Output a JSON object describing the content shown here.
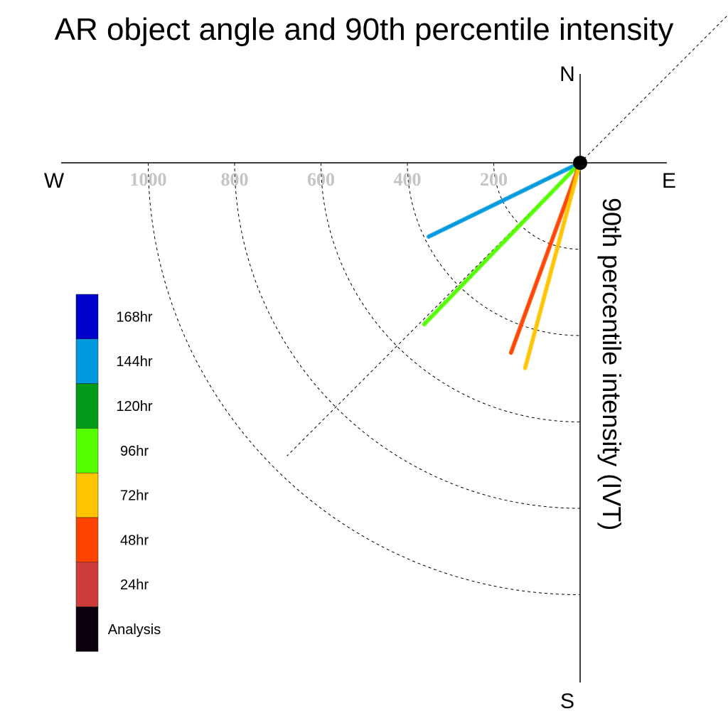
{
  "chart_data": {
    "type": "polar-vector",
    "title": "AR object angle and 90th percentile intensity",
    "radial_label": "90th percentile intensity (IVT)",
    "compass": {
      "n": "N",
      "e": "E",
      "s": "S",
      "w": "W"
    },
    "rings": [
      200,
      400,
      600,
      800,
      1000
    ],
    "ring_labels": [
      "200",
      "400",
      "600",
      "800",
      "1000"
    ],
    "rmax": 1200,
    "origin": {
      "x": 0,
      "y": 0
    },
    "diagonal_ref_deg": [
      45,
      225
    ],
    "series": [
      {
        "name": "144hr",
        "color": "#0099dd",
        "angle_deg": 244,
        "intensity": 390
      },
      {
        "name": "96hr",
        "color": "#55ff00",
        "angle_deg": 224,
        "intensity": 520
      },
      {
        "name": "48hr",
        "color": "#ff4400",
        "angle_deg": 200,
        "intensity": 468
      },
      {
        "name": "72hr",
        "color": "#ffc400",
        "angle_deg": 195,
        "intensity": 492
      }
    ],
    "legend": [
      {
        "label": "168hr",
        "color": "#0000cc"
      },
      {
        "label": "144hr",
        "color": "#0099dd"
      },
      {
        "label": "120hr",
        "color": "#009918"
      },
      {
        "label": "96hr",
        "color": "#55ff00"
      },
      {
        "label": "72hr",
        "color": "#ffc400"
      },
      {
        "label": "48hr",
        "color": "#ff4400"
      },
      {
        "label": "24hr",
        "color": "#cc3c3c"
      },
      {
        "label": "Analysis",
        "color": "#0d000d"
      }
    ]
  }
}
